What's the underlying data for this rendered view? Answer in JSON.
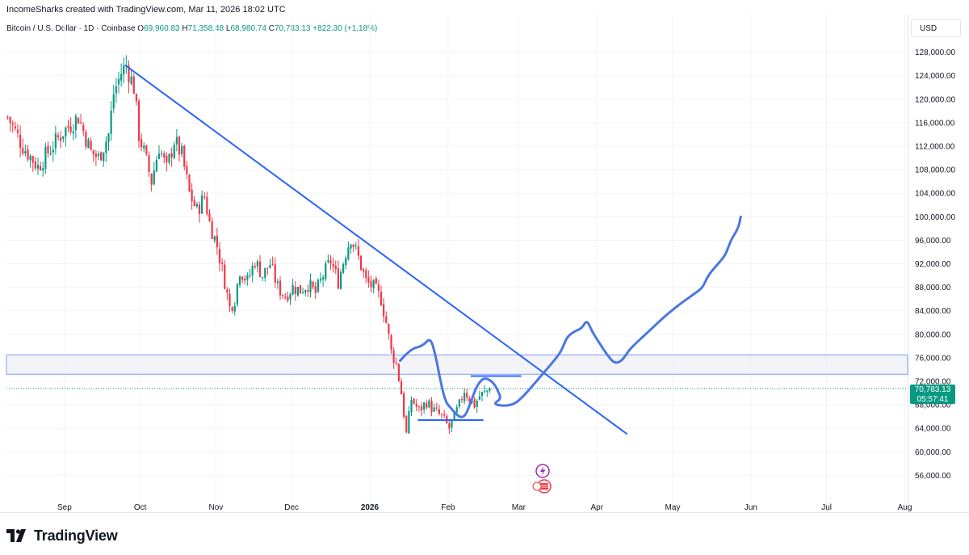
{
  "header": {
    "created_by": "IncomeSharks created with TradingView.com, Mar 11, 2026 18:02 UTC"
  },
  "legend": {
    "symbol": "Bitcoin / U.S. Dollar · 1D · Coinbase",
    "open": "69,960.83",
    "high": "71,358.48",
    "low": "68,980.74",
    "close": "70,783.13",
    "change": "+822.30 (+1.18%)"
  },
  "currency_button": {
    "label": "USD"
  },
  "price_badge": {
    "price": "70,783.13",
    "countdown": "05:57:41"
  },
  "colors": {
    "up": "#089981",
    "down": "#f23645",
    "drawing": "#2962ff",
    "projection": "#4a78e0",
    "zone_fill": "#eef0f6"
  },
  "footer": {
    "brand": "TradingView"
  },
  "chart_data": {
    "type": "candlestick",
    "symbol": "Bitcoin / U.S. Dollar",
    "interval": "1D",
    "y_ticks": [
      "56,000.00",
      "60,000.00",
      "64,000.00",
      "68,000.00",
      "72,000.00",
      "76,000.00",
      "80,000.00",
      "84,000.00",
      "88,000.00",
      "92,000.00",
      "96,000.00",
      "100,000.00",
      "104,000.00",
      "108,000.00",
      "112,000.00",
      "116,000.00",
      "120,000.00",
      "124,000.00",
      "128,000.00"
    ],
    "x_ticks": [
      "Sep",
      "Oct",
      "Nov",
      "Dec",
      "2026",
      "Feb",
      "Mar",
      "Apr",
      "May",
      "Jun",
      "Jul",
      "Aug"
    ],
    "last_price": 70783.13,
    "ylim": [
      53000,
      130500
    ],
    "close_path": [
      {
        "day": 0,
        "close": 117000
      },
      {
        "day": 6,
        "close": 112000
      },
      {
        "day": 12,
        "close": 108500
      },
      {
        "day": 16,
        "close": 111000
      },
      {
        "day": 22,
        "close": 114500
      },
      {
        "day": 28,
        "close": 117000
      },
      {
        "day": 33,
        "close": 111000
      },
      {
        "day": 36,
        "close": 110000
      },
      {
        "day": 40,
        "close": 114000
      },
      {
        "day": 42,
        "close": 121000
      },
      {
        "day": 45,
        "close": 124500
      },
      {
        "day": 47,
        "close": 125800
      },
      {
        "day": 50,
        "close": 122000
      },
      {
        "day": 52,
        "close": 114000
      },
      {
        "day": 54,
        "close": 111000
      },
      {
        "day": 57,
        "close": 106000
      },
      {
        "day": 60,
        "close": 112000
      },
      {
        "day": 63,
        "close": 108000
      },
      {
        "day": 66,
        "close": 113000
      },
      {
        "day": 69,
        "close": 110500
      },
      {
        "day": 72,
        "close": 104000
      },
      {
        "day": 75,
        "close": 101000
      },
      {
        "day": 78,
        "close": 103500
      },
      {
        "day": 80,
        "close": 99000
      },
      {
        "day": 83,
        "close": 95000
      },
      {
        "day": 86,
        "close": 89000
      },
      {
        "day": 88,
        "close": 84500
      },
      {
        "day": 90,
        "close": 86000
      },
      {
        "day": 92,
        "close": 91000
      },
      {
        "day": 95,
        "close": 89000
      },
      {
        "day": 98,
        "close": 92500
      },
      {
        "day": 101,
        "close": 90000
      },
      {
        "day": 104,
        "close": 92000
      },
      {
        "day": 107,
        "close": 88000
      },
      {
        "day": 110,
        "close": 86500
      },
      {
        "day": 113,
        "close": 88000
      },
      {
        "day": 116,
        "close": 87500
      },
      {
        "day": 119,
        "close": 88500
      },
      {
        "day": 122,
        "close": 87000
      },
      {
        "day": 125,
        "close": 90000
      },
      {
        "day": 128,
        "close": 92500
      },
      {
        "day": 131,
        "close": 89000
      },
      {
        "day": 134,
        "close": 94000
      },
      {
        "day": 136,
        "close": 96500
      },
      {
        "day": 139,
        "close": 93000
      },
      {
        "day": 142,
        "close": 89000
      },
      {
        "day": 145,
        "close": 88000
      },
      {
        "day": 148,
        "close": 86000
      },
      {
        "day": 150,
        "close": 82000
      },
      {
        "day": 152,
        "close": 77000
      },
      {
        "day": 154,
        "close": 75000
      },
      {
        "day": 156,
        "close": 70000
      },
      {
        "day": 158,
        "close": 63000
      },
      {
        "day": 160,
        "close": 69000
      },
      {
        "day": 163,
        "close": 67000
      },
      {
        "day": 166,
        "close": 68500
      },
      {
        "day": 169,
        "close": 67000
      },
      {
        "day": 172,
        "close": 66000
      },
      {
        "day": 175,
        "close": 64000
      },
      {
        "day": 177,
        "close": 66000
      },
      {
        "day": 179,
        "close": 68000
      },
      {
        "day": 181,
        "close": 70500
      },
      {
        "day": 183,
        "close": 69000
      },
      {
        "day": 185,
        "close": 68000
      },
      {
        "day": 187,
        "close": 69500
      },
      {
        "day": 189,
        "close": 70000
      },
      {
        "day": 191,
        "close": 70783
      }
    ],
    "zone": {
      "low": 73200,
      "high": 76500
    },
    "trendline": {
      "from": {
        "day": 47,
        "price": 125800
      },
      "to": {
        "day": 246,
        "price": 63000
      }
    },
    "support_line": {
      "from": {
        "day": 163,
        "price": 65400
      },
      "to": {
        "day": 189,
        "price": 65400
      },
      "price": 65400
    },
    "resistance_line": {
      "from": {
        "day": 184,
        "price": 72900
      },
      "to": {
        "day": 204,
        "price": 72900
      },
      "price": 72900
    },
    "projection_path": [
      {
        "day": 156,
        "price": 75500
      },
      {
        "day": 160,
        "price": 77500
      },
      {
        "day": 165,
        "price": 78000
      },
      {
        "day": 168,
        "price": 79500
      },
      {
        "day": 170,
        "price": 76500
      },
      {
        "day": 172,
        "price": 72000
      },
      {
        "day": 174,
        "price": 68500
      },
      {
        "day": 176,
        "price": 67500
      },
      {
        "day": 178,
        "price": 66500
      },
      {
        "day": 180,
        "price": 65800
      },
      {
        "day": 182,
        "price": 66200
      },
      {
        "day": 184,
        "price": 68500
      },
      {
        "day": 186,
        "price": 70800
      },
      {
        "day": 188,
        "price": 72200
      },
      {
        "day": 190,
        "price": 72600
      },
      {
        "day": 193,
        "price": 71800
      },
      {
        "day": 195,
        "price": 70200
      },
      {
        "day": 196,
        "price": 69000
      },
      {
        "day": 193,
        "price": 68200
      },
      {
        "day": 196,
        "price": 67800
      },
      {
        "day": 201,
        "price": 68000
      },
      {
        "day": 205,
        "price": 69500
      },
      {
        "day": 209,
        "price": 71500
      },
      {
        "day": 213,
        "price": 73500
      },
      {
        "day": 217,
        "price": 75500
      },
      {
        "day": 220,
        "price": 77200
      },
      {
        "day": 222,
        "price": 79500
      },
      {
        "day": 225,
        "price": 80500
      },
      {
        "day": 228,
        "price": 81000
      },
      {
        "day": 230,
        "price": 82500
      },
      {
        "day": 232,
        "price": 80500
      },
      {
        "day": 235,
        "price": 78500
      },
      {
        "day": 238,
        "price": 76500
      },
      {
        "day": 241,
        "price": 75000
      },
      {
        "day": 244,
        "price": 75500
      },
      {
        "day": 247,
        "price": 77500
      },
      {
        "day": 252,
        "price": 79500
      },
      {
        "day": 257,
        "price": 81500
      },
      {
        "day": 262,
        "price": 83500
      },
      {
        "day": 268,
        "price": 85500
      },
      {
        "day": 273,
        "price": 87000
      },
      {
        "day": 276,
        "price": 88000
      },
      {
        "day": 278,
        "price": 90000
      },
      {
        "day": 282,
        "price": 92000
      },
      {
        "day": 285,
        "price": 93500
      },
      {
        "day": 287,
        "price": 96000
      },
      {
        "day": 290,
        "price": 98000
      },
      {
        "day": 291,
        "price": 100000
      }
    ]
  }
}
